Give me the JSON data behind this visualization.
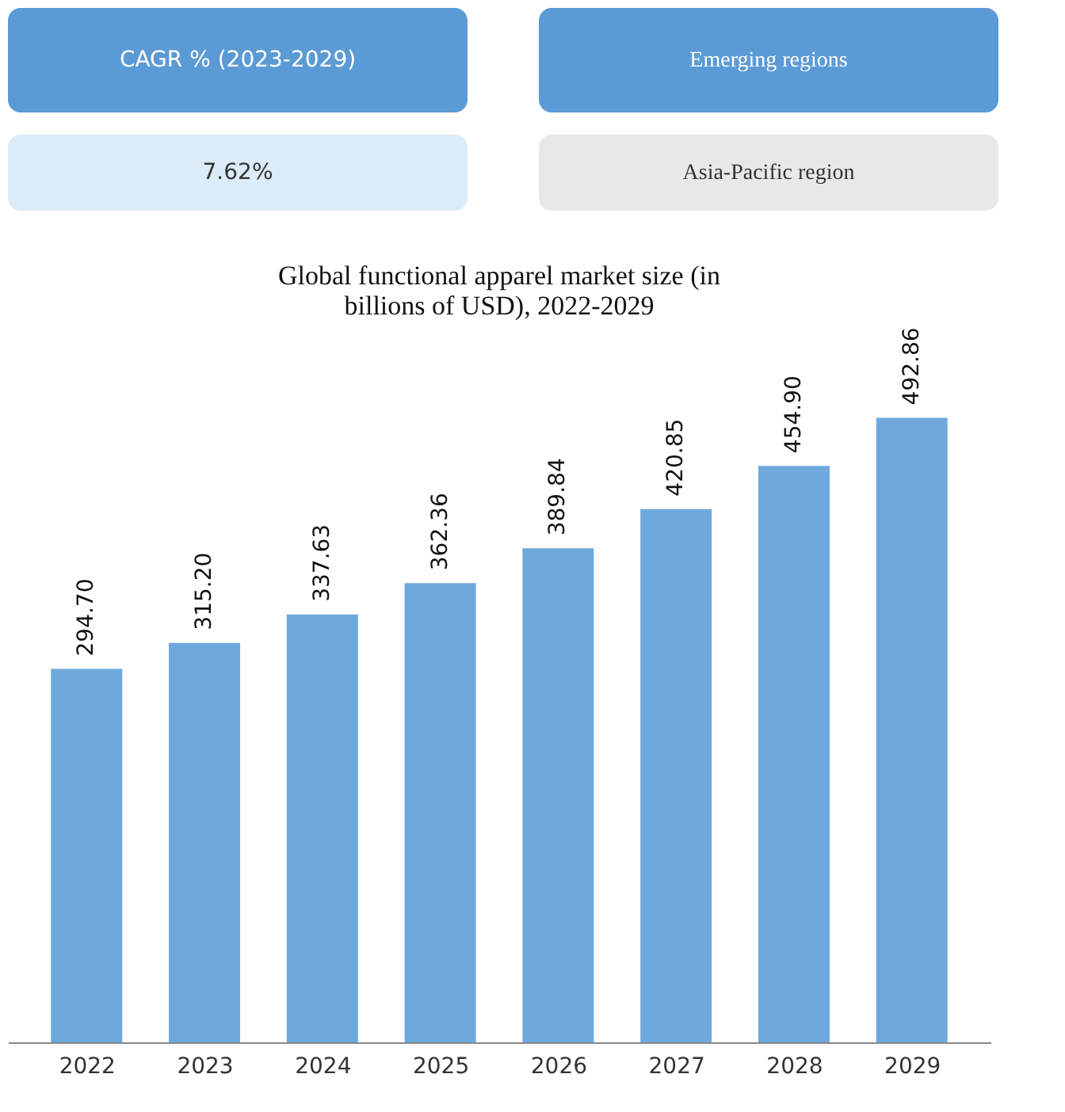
{
  "chart_data": {
    "type": "bar",
    "title": "Global functional apparel market size (in billions of USD), 2022-2029",
    "annotations": [
      "CAGR % (2023-2029)",
      "Emerging regions",
      "7.62%",
      "Asia-Pacific region"
    ],
    "categories": [
      "2022",
      "2023",
      "2024",
      "2025",
      "2026",
      "2027",
      "2028",
      "2029"
    ],
    "values": [
      294.7,
      315.2,
      337.63,
      362.36,
      389.84,
      420.85,
      454.9,
      492.86
    ],
    "value_labels": [
      "294.70",
      "315.20",
      "337.63",
      "362.36",
      "389.84",
      "420.85",
      "454.90",
      "492.86"
    ],
    "color": "#6fa8dc",
    "grid": false,
    "tick_labels": "x"
  }
}
